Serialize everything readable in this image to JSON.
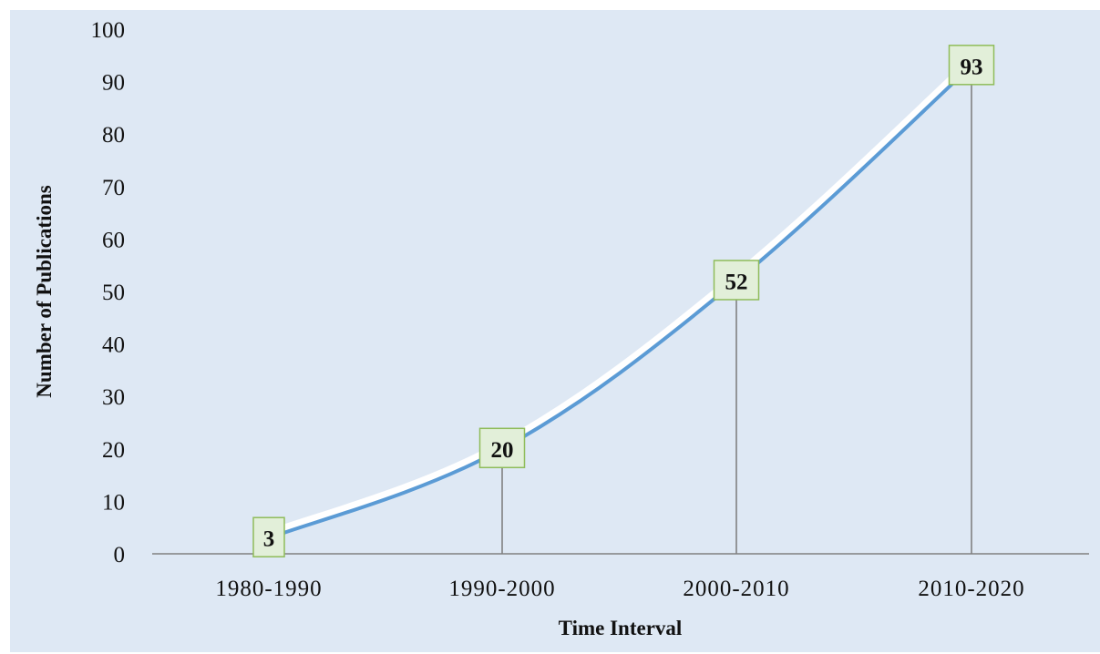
{
  "chart_data": {
    "type": "line",
    "categories": [
      "1980-1990",
      "1990-2000",
      "2000-2010",
      "2010-2020"
    ],
    "values": [
      3,
      20,
      52,
      93
    ],
    "data_labels": [
      "3",
      "20",
      "52",
      "93"
    ],
    "xlabel": "Time Interval",
    "ylabel": "Number of  Publications",
    "ylim": [
      0,
      100
    ],
    "yticks": [
      "0",
      "10",
      "20",
      "30",
      "40",
      "50",
      "60",
      "70",
      "80",
      "90",
      "100"
    ],
    "grid": false,
    "drop_lines": true,
    "colors": {
      "background": "#dee8f4",
      "line": "#5b9bd5",
      "line_shadow": "#ffffff",
      "label_fill": "#e2efd9",
      "label_border": "#8fbc5a",
      "axis": "#808080",
      "drop_line": "#808080"
    }
  }
}
